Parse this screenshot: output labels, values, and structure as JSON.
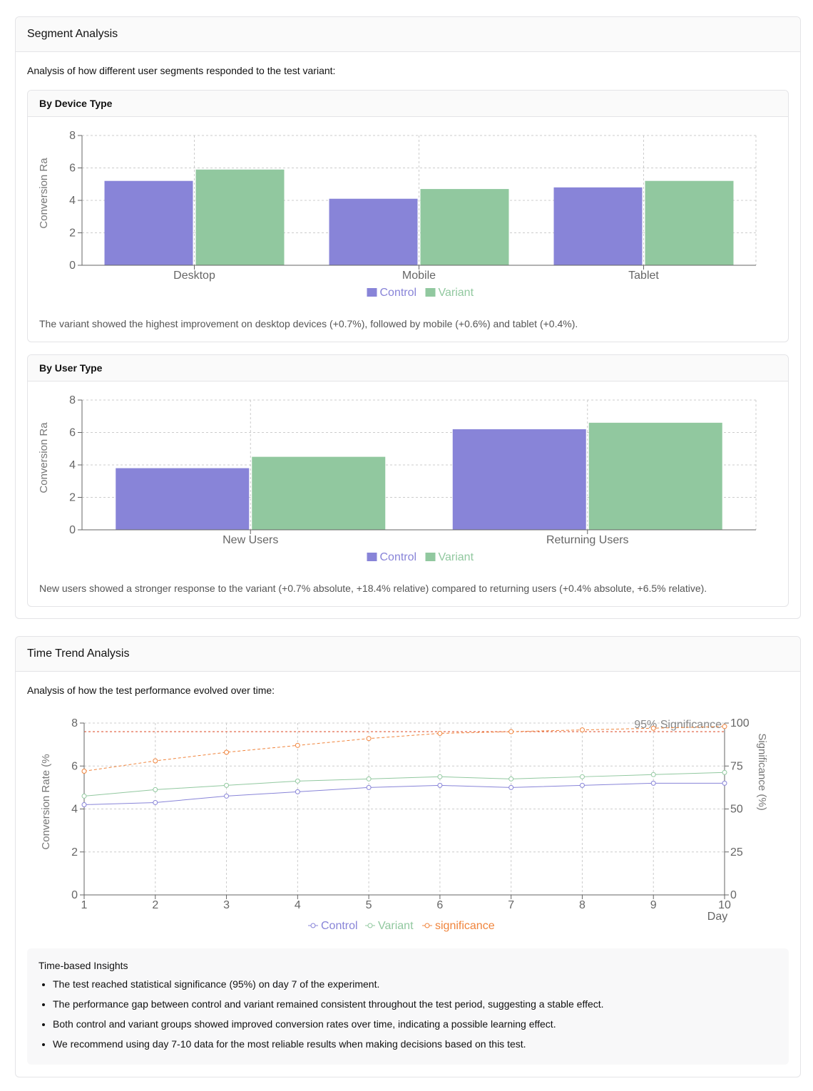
{
  "segment": {
    "title": "Segment Analysis",
    "intro": "Analysis of how different user segments responded to the test variant:",
    "device": {
      "title": "By Device Type",
      "note": "The variant showed the highest improvement on desktop devices (+0.7%), followed by mobile (+0.6%) and tablet (+0.4%)."
    },
    "user": {
      "title": "By User Type",
      "note": "New users showed a stronger response to the variant (+0.7% absolute, +18.4% relative) compared to returning users (+0.4% absolute, +6.5% relative)."
    }
  },
  "trend": {
    "title": "Time Trend Analysis",
    "intro": "Analysis of how the test performance evolved over time:",
    "insights_title": "Time-based Insights",
    "insights": [
      "The test reached statistical significance (95%) on day 7 of the experiment.",
      "The performance gap between control and variant remained consistent throughout the test period, suggesting a stable effect.",
      "Both control and variant groups showed improved conversion rates over time, indicating a possible learning effect.",
      "We recommend using day 7-10 data for the most reliable results when making decisions based on this test."
    ]
  },
  "chart_data": [
    {
      "type": "bar",
      "categories": [
        "Desktop",
        "Mobile",
        "Tablet"
      ],
      "series": [
        {
          "name": "Control",
          "values": [
            5.2,
            4.1,
            4.8
          ],
          "color": "#8884d8"
        },
        {
          "name": "Variant",
          "values": [
            5.9,
            4.7,
            5.2
          ],
          "color": "#91c89f"
        }
      ],
      "ylabel": "Conversion Ra",
      "ylim": [
        0,
        8
      ],
      "yticks": [
        0,
        2,
        4,
        6,
        8
      ],
      "grid": true,
      "legend": "bottom-center"
    },
    {
      "type": "bar",
      "categories": [
        "New Users",
        "Returning Users"
      ],
      "series": [
        {
          "name": "Control",
          "values": [
            3.8,
            6.2
          ],
          "color": "#8884d8"
        },
        {
          "name": "Variant",
          "values": [
            4.5,
            6.6
          ],
          "color": "#91c89f"
        }
      ],
      "ylabel": "Conversion Ra",
      "ylim": [
        0,
        8
      ],
      "yticks": [
        0,
        2,
        4,
        6,
        8
      ],
      "grid": true,
      "legend": "bottom-center"
    },
    {
      "type": "line",
      "x": [
        1,
        2,
        3,
        4,
        5,
        6,
        7,
        8,
        9,
        10
      ],
      "xlabel": "Day",
      "ylabel": "Conversion Rate (%",
      "ylabel_right": "Significance (%)",
      "ylim": [
        0,
        8
      ],
      "ylim_right": [
        0,
        100
      ],
      "yticks": [
        0,
        2,
        4,
        6,
        8
      ],
      "yticks_right": [
        0,
        25,
        50,
        75,
        100
      ],
      "series": [
        {
          "name": "Control",
          "axis": "left",
          "values": [
            4.2,
            4.3,
            4.6,
            4.8,
            5.0,
            5.1,
            5.0,
            5.1,
            5.2,
            5.2
          ],
          "color": "#8884d8"
        },
        {
          "name": "Variant",
          "axis": "left",
          "values": [
            4.6,
            4.9,
            5.1,
            5.3,
            5.4,
            5.5,
            5.4,
            5.5,
            5.6,
            5.7
          ],
          "color": "#91c89f"
        },
        {
          "name": "significance",
          "axis": "right",
          "values": [
            72,
            78,
            83,
            87,
            91,
            94,
            95,
            96,
            97,
            98
          ],
          "color": "#f0843c",
          "dashed": true
        }
      ],
      "reference_line": {
        "axis": "right",
        "value": 95,
        "label": "95% Significance",
        "color": "#e05a3a"
      },
      "grid": true,
      "legend": "bottom-center"
    }
  ]
}
